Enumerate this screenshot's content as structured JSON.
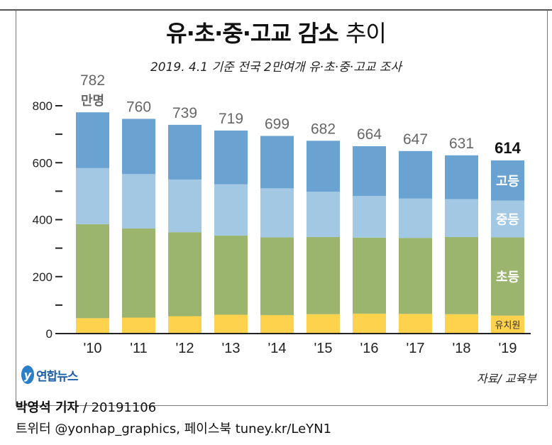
{
  "title_bold": "유·초·중·고교 감소",
  "title_light": "추이",
  "subtitle": "2019. 4.1 기준 전국 2만여개 유·초·중·고교 조사",
  "logo_text": "연합뉴스",
  "source": "자료/ 교육부",
  "credit_name": "박영석 기자",
  "credit_date": " / 20191106",
  "social": "트위터 @yonhap_graphics, 페이스북 tuney.kr/LeYN1",
  "chart_data": {
    "type": "bar",
    "stacked": true,
    "categories": [
      "'10",
      "'11",
      "'12",
      "'13",
      "'14",
      "'15",
      "'16",
      "'17",
      "'18",
      "'19"
    ],
    "totals": [
      782,
      760,
      739,
      719,
      699,
      682,
      664,
      647,
      631,
      614
    ],
    "first_total_unit": "만명",
    "ylim": [
      0,
      800
    ],
    "yticks": [
      0,
      200,
      400,
      600,
      800
    ],
    "series": [
      {
        "name": "유치원",
        "color": "#ffd24d",
        "values": [
          54,
          56,
          61,
          66,
          65,
          68,
          70,
          69,
          68,
          63
        ]
      },
      {
        "name": "초등",
        "color": "#9bb56f",
        "values": [
          330,
          313,
          295,
          278,
          273,
          271,
          267,
          267,
          271,
          275
        ]
      },
      {
        "name": "중등",
        "color": "#a3c8e4",
        "values": [
          197,
          191,
          185,
          180,
          172,
          159,
          146,
          138,
          133,
          129
        ]
      },
      {
        "name": "고등",
        "color": "#6aa2d2",
        "values": [
          196,
          194,
          192,
          189,
          184,
          179,
          175,
          167,
          154,
          141
        ]
      }
    ],
    "grid": false,
    "legend": "inline labels on last bar"
  }
}
